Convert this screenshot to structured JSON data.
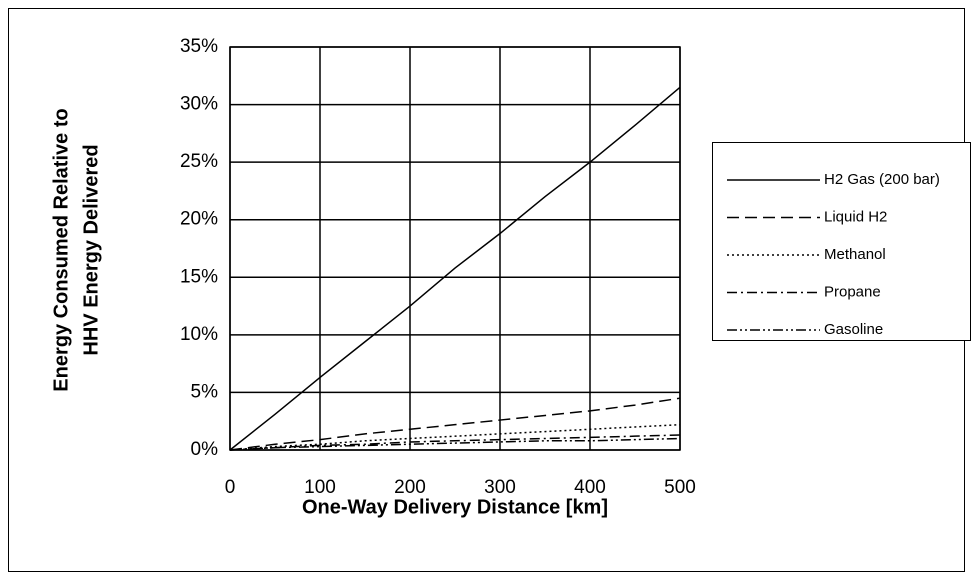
{
  "chart_data": {
    "type": "line",
    "xlabel": "One-Way Delivery Distance [km]",
    "ylabel": [
      "Energy Consumed Relative to",
      "HHV Energy Delivered"
    ],
    "xlim": [
      0,
      500
    ],
    "xticks": [
      0,
      100,
      200,
      300,
      400,
      500
    ],
    "ylim": [
      0,
      35
    ],
    "yticks": [
      {
        "value": 0,
        "label": "0%"
      },
      {
        "value": 5,
        "label": "5%"
      },
      {
        "value": 10,
        "label": "10%"
      },
      {
        "value": 15,
        "label": "15%"
      },
      {
        "value": 20,
        "label": "20%"
      },
      {
        "value": 25,
        "label": "25%"
      },
      {
        "value": 30,
        "label": "30%"
      },
      {
        "value": 35,
        "label": "35%"
      }
    ],
    "grid": true,
    "legend": "right",
    "x": [
      0,
      50,
      100,
      150,
      200,
      250,
      300,
      350,
      400,
      450,
      500
    ],
    "series": [
      {
        "name": "H2 Gas (200 bar)",
        "color": "#000000",
        "dash": "none",
        "values": [
          0,
          3.1,
          6.3,
          9.4,
          12.5,
          15.8,
          18.8,
          22,
          25,
          28.2,
          31.5
        ]
      },
      {
        "name": "Liquid H2",
        "color": "#000000",
        "dash": "12 6",
        "values": [
          0,
          0.5,
          0.9,
          1.4,
          1.8,
          2.2,
          2.6,
          3.0,
          3.4,
          3.9,
          4.5
        ]
      },
      {
        "name": "Methanol",
        "color": "#000000",
        "dash": "2 3",
        "values": [
          0,
          0.3,
          0.5,
          0.8,
          1.0,
          1.2,
          1.4,
          1.6,
          1.8,
          2.0,
          2.2
        ]
      },
      {
        "name": "Propane",
        "color": "#000000",
        "dash": "10 4 2 4",
        "values": [
          0,
          0.2,
          0.4,
          0.5,
          0.7,
          0.8,
          0.9,
          1.0,
          1.1,
          1.2,
          1.3
        ]
      },
      {
        "name": "Gasoline",
        "color": "#000000",
        "dash": "10 3 2 3 2 3",
        "values": [
          0,
          0.2,
          0.3,
          0.4,
          0.5,
          0.6,
          0.7,
          0.8,
          0.8,
          0.9,
          1.0
        ]
      }
    ]
  }
}
